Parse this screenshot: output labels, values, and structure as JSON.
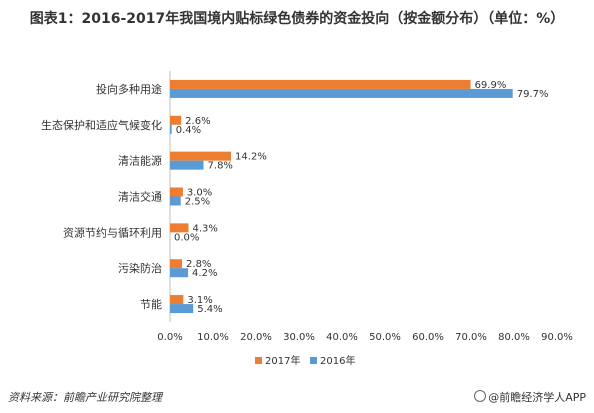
{
  "chart_data": {
    "type": "bar",
    "orientation": "horizontal",
    "title": "图表1：2016-2017年我国境内贴标绿色债券的资金投向（按金额分布）（单位：%）",
    "categories": [
      "投向多种用途",
      "生态保护和适应气候变化",
      "清洁能源",
      "清洁交通",
      "资源节约与循环利用",
      "污染防治",
      "节能"
    ],
    "series": [
      {
        "name": "2017年",
        "color": "#ED7D31",
        "values": [
          69.9,
          2.6,
          14.2,
          3.0,
          4.3,
          2.8,
          3.1
        ]
      },
      {
        "name": "2016年",
        "color": "#5B9BD5",
        "values": [
          79.7,
          0.4,
          7.8,
          2.5,
          0.0,
          4.2,
          5.4
        ]
      }
    ],
    "value_labels": {
      "2017年": [
        "69.9%",
        "2.6%",
        "14.2%",
        "3.0%",
        "4.3%",
        "2.8%",
        "3.1%"
      ],
      "2016年": [
        "79.7%",
        "0.4%",
        "7.8%",
        "2.5%",
        "0.0%",
        "4.2%",
        "5.4%"
      ]
    },
    "xlim": [
      0,
      90
    ],
    "xticks": [
      "0.0%",
      "10.0%",
      "20.0%",
      "30.0%",
      "40.0%",
      "50.0%",
      "60.0%",
      "70.0%",
      "80.0%",
      "90.0%"
    ],
    "legend_position": "bottom",
    "grid": false
  },
  "footer": {
    "source": "资料来源：前瞻产业研究院整理",
    "brand": "@前瞻经济学人APP"
  }
}
